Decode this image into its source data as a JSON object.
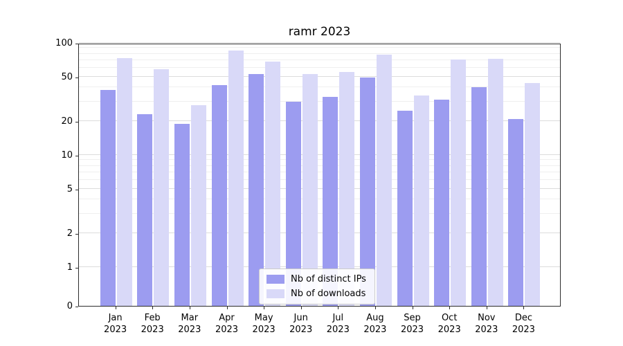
{
  "chart_data": {
    "type": "bar",
    "title": "ramr 2023",
    "categories": [
      "Jan 2023",
      "Feb 2023",
      "Mar 2023",
      "Apr 2023",
      "May 2023",
      "Jun 2023",
      "Jul 2023",
      "Aug 2023",
      "Sep 2023",
      "Oct 2023",
      "Nov 2023",
      "Dec 2023"
    ],
    "series": [
      {
        "name": "Nb of distinct IPs",
        "color": "#9c9cf0",
        "values": [
          38,
          23,
          19,
          42,
          53,
          30,
          33,
          49,
          25,
          31,
          40,
          21
        ]
      },
      {
        "name": "Nb of downloads",
        "color": "#d9d9f8",
        "values": [
          73,
          58,
          28,
          85,
          68,
          53,
          55,
          79,
          34,
          71,
          72,
          44
        ]
      }
    ],
    "yscale": "symlog",
    "ylim": [
      0,
      100
    ],
    "yticks": [
      0,
      1,
      2,
      5,
      10,
      20,
      50,
      100
    ],
    "minor_yticks": [
      3,
      4,
      6,
      7,
      8,
      9,
      30,
      40,
      60,
      70,
      80,
      90
    ],
    "grid": true,
    "legend_position": "lower center",
    "xlabel": "",
    "ylabel": ""
  }
}
